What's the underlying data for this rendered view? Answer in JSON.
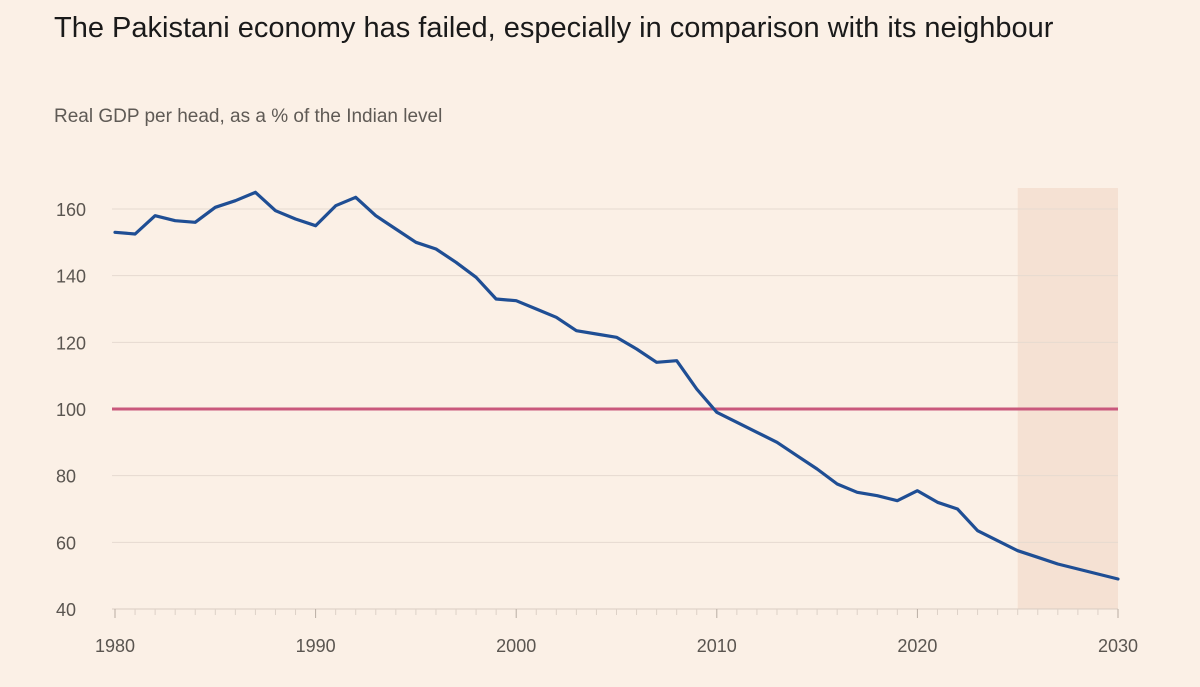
{
  "title": "The Pakistani economy has failed, especially in comparison with its neighbour",
  "subtitle": "Real GDP per head, as a % of the Indian level",
  "colors": {
    "background": "#fbf0e6",
    "series_line": "#1f4e94",
    "reference_line": "#c9587c",
    "forecast_shade": "#f5e1d3",
    "grid": "#e6dad0"
  },
  "chart_data": {
    "type": "line",
    "title": "The Pakistani economy has failed, especially in comparison with its neighbour",
    "subtitle": "Real GDP per head, as a % of the Indian level",
    "xlabel": "",
    "ylabel": "",
    "xlim": [
      1980,
      2030
    ],
    "ylim": [
      40,
      165
    ],
    "x_ticks": [
      1980,
      1990,
      2000,
      2010,
      2020,
      2030
    ],
    "y_ticks": [
      40,
      60,
      80,
      100,
      120,
      140,
      160
    ],
    "grid": "horizontal",
    "reference_line": {
      "y": 100
    },
    "shaded_region": {
      "x_start": 2025,
      "x_end": 2030
    },
    "series": [
      {
        "x": [
          1980,
          1981,
          1982,
          1983,
          1984,
          1985,
          1986,
          1987,
          1988,
          1989,
          1990,
          1991,
          1992,
          1993,
          1994,
          1995,
          1996,
          1997,
          1998,
          1999,
          2000,
          2001,
          2002,
          2003,
          2004,
          2005,
          2006,
          2007,
          2008,
          2009,
          2010,
          2011,
          2012,
          2013,
          2014,
          2015,
          2016,
          2017,
          2018,
          2019,
          2020,
          2021,
          2022,
          2023,
          2024,
          2025,
          2026,
          2027,
          2028,
          2029,
          2030
        ],
        "values": [
          153,
          152.5,
          158,
          156.5,
          156,
          160.5,
          162.5,
          165,
          159.5,
          157,
          155,
          161,
          163.5,
          158,
          154,
          150,
          148,
          144,
          139.5,
          133,
          132.5,
          130,
          127.5,
          123.5,
          122.5,
          121.5,
          118,
          114,
          114.5,
          106,
          99,
          96,
          93,
          90,
          86,
          82,
          77.5,
          75,
          74,
          72.5,
          75.5,
          72,
          70,
          63.5,
          60.5,
          57.5,
          55.5,
          53.5,
          52,
          50.5,
          49
        ]
      }
    ]
  }
}
